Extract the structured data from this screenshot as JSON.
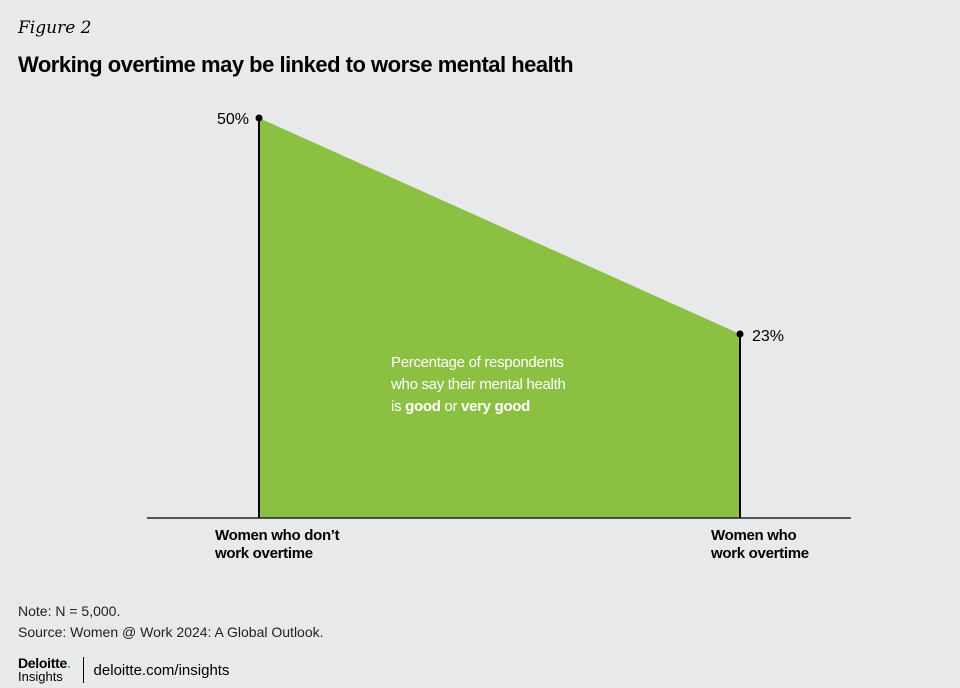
{
  "figure_label": "Figure 2",
  "title": "Working overtime may be linked to worse mental health",
  "chart_data": {
    "type": "area",
    "categories": [
      "Women who don’t work overtime",
      "Women who work overtime"
    ],
    "category_lines": [
      [
        "Women who don’t",
        "work overtime"
      ],
      [
        "Women who",
        "work overtime"
      ]
    ],
    "values": [
      50,
      23
    ],
    "value_labels": [
      "50%",
      "23%"
    ],
    "annotation": {
      "line1": "Percentage of respondents",
      "line2": "who say their mental health",
      "line3_prefix": "is ",
      "line3_bold1": "good",
      "line3_mid": " or ",
      "line3_bold2": "very good"
    },
    "colors": {
      "fill": "#8bc043",
      "line": "#000000"
    }
  },
  "note": "Note: N = 5,000.",
  "source": "Source: Women @ Work 2024: A Global Outlook.",
  "footer": {
    "logo_main": "Deloitte",
    "logo_dot": ".",
    "logo_sub": "Insights",
    "site": "deloitte.com/insights"
  }
}
